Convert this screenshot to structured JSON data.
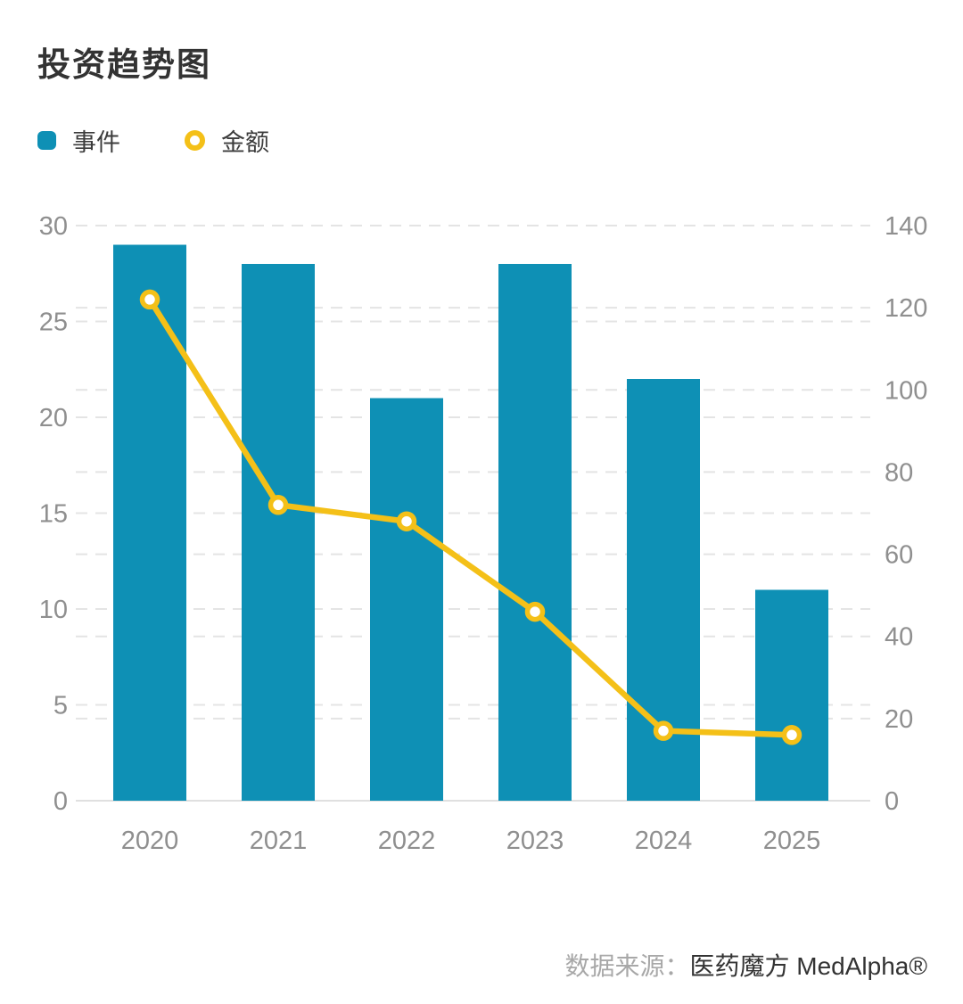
{
  "title": "投资趋势图",
  "legend": {
    "items": [
      {
        "label": "事件",
        "marker": "bar-swatch"
      },
      {
        "label": "金额",
        "marker": "ring"
      }
    ]
  },
  "footer": {
    "prefix": "数据来源：",
    "source": "医药魔方 MedAlpha®"
  },
  "chart_data": {
    "type": "bar+line",
    "title": "投资趋势图",
    "categories": [
      "2020",
      "2021",
      "2022",
      "2023",
      "2024",
      "2025"
    ],
    "series": [
      {
        "name": "事件",
        "type": "bar",
        "axis": "left",
        "color": "#0e90b5",
        "values": [
          29,
          28,
          21,
          28,
          22,
          11
        ]
      },
      {
        "name": "金额",
        "type": "line",
        "axis": "right",
        "color": "#f4c018",
        "marker_fill": "#ffffff",
        "values": [
          122,
          72,
          68,
          46,
          17,
          16
        ]
      }
    ],
    "left_axis": {
      "ticks": [
        0,
        5,
        10,
        15,
        20,
        25,
        30
      ],
      "range": [
        0,
        30
      ]
    },
    "right_axis": {
      "ticks": [
        0,
        20,
        40,
        60,
        80,
        100,
        120,
        140
      ],
      "range": [
        0,
        140
      ]
    },
    "grid": {
      "dashed": true,
      "color": "#e4e4e4",
      "baseline_color": "#e0e0e0"
    },
    "legend_position": "top-left"
  }
}
